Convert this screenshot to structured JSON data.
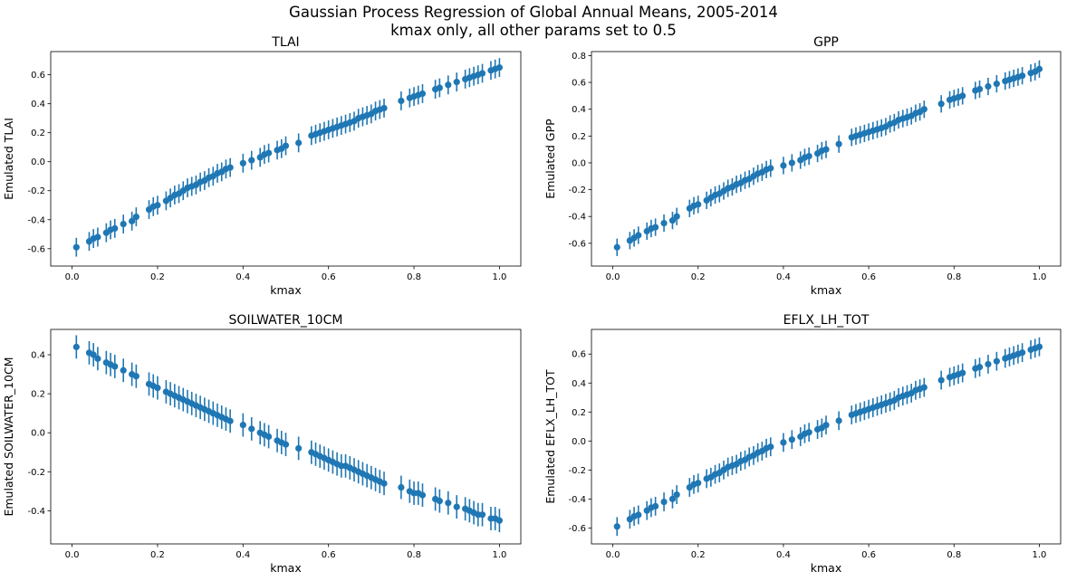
{
  "figure": {
    "title_line1": "Gaussian Process Regression of Global Annual Means, 2005-2014",
    "title_line2": "kmax only, all other params set to 0.5",
    "marker_color": "#1f77b4"
  },
  "chart_data": [
    {
      "type": "scatter",
      "title": "TLAI",
      "xlabel": "kmax",
      "ylabel": "Emulated TLAI",
      "xlim": [
        -0.05,
        1.05
      ],
      "ylim": [
        -0.72,
        0.76
      ],
      "xticks": [
        "0.0",
        "0.2",
        "0.4",
        "0.6",
        "0.8",
        "1.0"
      ],
      "yticks": [
        "-0.6",
        "-0.4",
        "-0.2",
        "0.0",
        "0.2",
        "0.4",
        "0.6"
      ],
      "error_bars": true,
      "x": [
        0.01,
        0.04,
        0.05,
        0.06,
        0.08,
        0.09,
        0.1,
        0.12,
        0.14,
        0.15,
        0.18,
        0.19,
        0.2,
        0.22,
        0.23,
        0.24,
        0.25,
        0.26,
        0.27,
        0.28,
        0.29,
        0.3,
        0.31,
        0.32,
        0.33,
        0.34,
        0.35,
        0.36,
        0.37,
        0.4,
        0.42,
        0.44,
        0.45,
        0.46,
        0.48,
        0.49,
        0.5,
        0.53,
        0.56,
        0.57,
        0.58,
        0.59,
        0.6,
        0.61,
        0.62,
        0.63,
        0.64,
        0.65,
        0.66,
        0.67,
        0.68,
        0.69,
        0.7,
        0.71,
        0.72,
        0.73,
        0.77,
        0.79,
        0.8,
        0.81,
        0.82,
        0.85,
        0.86,
        0.88,
        0.9,
        0.92,
        0.93,
        0.94,
        0.95,
        0.96,
        0.98,
        0.99,
        1.0
      ],
      "y": [
        -0.59,
        -0.55,
        -0.53,
        -0.52,
        -0.49,
        -0.47,
        -0.46,
        -0.43,
        -0.41,
        -0.38,
        -0.33,
        -0.31,
        -0.3,
        -0.27,
        -0.25,
        -0.23,
        -0.22,
        -0.2,
        -0.18,
        -0.17,
        -0.16,
        -0.14,
        -0.13,
        -0.11,
        -0.1,
        -0.08,
        -0.07,
        -0.05,
        -0.04,
        -0.01,
        0.01,
        0.03,
        0.05,
        0.06,
        0.08,
        0.09,
        0.11,
        0.13,
        0.18,
        0.19,
        0.2,
        0.21,
        0.22,
        0.23,
        0.24,
        0.25,
        0.26,
        0.27,
        0.28,
        0.3,
        0.31,
        0.32,
        0.33,
        0.35,
        0.36,
        0.37,
        0.42,
        0.44,
        0.45,
        0.46,
        0.47,
        0.5,
        0.51,
        0.53,
        0.55,
        0.57,
        0.58,
        0.59,
        0.6,
        0.61,
        0.63,
        0.64,
        0.65
      ],
      "error": 0.065
    },
    {
      "type": "scatter",
      "title": "GPP",
      "xlabel": "kmax",
      "ylabel": "Emulated GPP",
      "xlim": [
        -0.05,
        1.05
      ],
      "ylim": [
        -0.77,
        0.83
      ],
      "xticks": [
        "0.0",
        "0.2",
        "0.4",
        "0.6",
        "0.8",
        "1.0"
      ],
      "yticks": [
        "-0.6",
        "-0.4",
        "-0.2",
        "0.0",
        "0.2",
        "0.4",
        "0.6",
        "0.8"
      ],
      "error_bars": true,
      "x": [
        0.01,
        0.04,
        0.05,
        0.06,
        0.08,
        0.09,
        0.1,
        0.12,
        0.14,
        0.15,
        0.18,
        0.19,
        0.2,
        0.22,
        0.23,
        0.24,
        0.25,
        0.26,
        0.27,
        0.28,
        0.29,
        0.3,
        0.31,
        0.32,
        0.33,
        0.34,
        0.35,
        0.36,
        0.37,
        0.4,
        0.42,
        0.44,
        0.45,
        0.46,
        0.48,
        0.49,
        0.5,
        0.53,
        0.56,
        0.57,
        0.58,
        0.59,
        0.6,
        0.61,
        0.62,
        0.63,
        0.64,
        0.65,
        0.66,
        0.67,
        0.68,
        0.69,
        0.7,
        0.71,
        0.72,
        0.73,
        0.77,
        0.79,
        0.8,
        0.81,
        0.82,
        0.85,
        0.86,
        0.88,
        0.9,
        0.92,
        0.93,
        0.94,
        0.95,
        0.96,
        0.98,
        0.99,
        1.0
      ],
      "y": [
        -0.63,
        -0.58,
        -0.56,
        -0.54,
        -0.51,
        -0.49,
        -0.48,
        -0.45,
        -0.43,
        -0.4,
        -0.34,
        -0.32,
        -0.31,
        -0.28,
        -0.26,
        -0.24,
        -0.23,
        -0.21,
        -0.19,
        -0.18,
        -0.16,
        -0.15,
        -0.13,
        -0.12,
        -0.1,
        -0.08,
        -0.07,
        -0.05,
        -0.04,
        -0.02,
        0.0,
        0.02,
        0.04,
        0.05,
        0.07,
        0.09,
        0.1,
        0.14,
        0.19,
        0.2,
        0.21,
        0.22,
        0.23,
        0.24,
        0.25,
        0.26,
        0.27,
        0.29,
        0.3,
        0.32,
        0.33,
        0.34,
        0.35,
        0.37,
        0.38,
        0.4,
        0.44,
        0.47,
        0.48,
        0.49,
        0.5,
        0.54,
        0.55,
        0.57,
        0.59,
        0.61,
        0.62,
        0.63,
        0.64,
        0.65,
        0.67,
        0.68,
        0.7
      ],
      "error": 0.065
    },
    {
      "type": "scatter",
      "title": "SOILWATER_10CM",
      "xlabel": "kmax",
      "ylabel": "Emulated SOILWATER_10CM",
      "xlim": [
        -0.05,
        1.05
      ],
      "ylim": [
        -0.57,
        0.53
      ],
      "xticks": [
        "0.0",
        "0.2",
        "0.4",
        "0.6",
        "0.8",
        "1.0"
      ],
      "yticks": [
        "-0.4",
        "-0.2",
        "0.0",
        "0.2",
        "0.4"
      ],
      "error_bars": true,
      "x": [
        0.01,
        0.04,
        0.05,
        0.06,
        0.08,
        0.09,
        0.1,
        0.12,
        0.14,
        0.15,
        0.18,
        0.19,
        0.2,
        0.22,
        0.23,
        0.24,
        0.25,
        0.26,
        0.27,
        0.28,
        0.29,
        0.3,
        0.31,
        0.32,
        0.33,
        0.34,
        0.35,
        0.36,
        0.37,
        0.4,
        0.42,
        0.44,
        0.45,
        0.46,
        0.48,
        0.49,
        0.5,
        0.53,
        0.56,
        0.57,
        0.58,
        0.59,
        0.6,
        0.61,
        0.62,
        0.63,
        0.64,
        0.65,
        0.66,
        0.67,
        0.68,
        0.69,
        0.7,
        0.71,
        0.72,
        0.73,
        0.77,
        0.79,
        0.8,
        0.81,
        0.82,
        0.85,
        0.86,
        0.88,
        0.9,
        0.92,
        0.93,
        0.94,
        0.95,
        0.96,
        0.98,
        0.99,
        1.0
      ],
      "y": [
        0.44,
        0.41,
        0.4,
        0.38,
        0.36,
        0.35,
        0.34,
        0.32,
        0.3,
        0.29,
        0.25,
        0.24,
        0.23,
        0.21,
        0.2,
        0.19,
        0.18,
        0.17,
        0.16,
        0.15,
        0.14,
        0.13,
        0.12,
        0.11,
        0.1,
        0.09,
        0.08,
        0.07,
        0.06,
        0.04,
        0.02,
        0.0,
        -0.01,
        -0.02,
        -0.04,
        -0.05,
        -0.06,
        -0.08,
        -0.1,
        -0.11,
        -0.12,
        -0.13,
        -0.14,
        -0.15,
        -0.16,
        -0.17,
        -0.17,
        -0.18,
        -0.19,
        -0.2,
        -0.21,
        -0.22,
        -0.23,
        -0.24,
        -0.25,
        -0.26,
        -0.28,
        -0.3,
        -0.31,
        -0.31,
        -0.32,
        -0.34,
        -0.35,
        -0.36,
        -0.38,
        -0.39,
        -0.4,
        -0.41,
        -0.42,
        -0.42,
        -0.44,
        -0.44,
        -0.45
      ],
      "error": 0.06
    },
    {
      "type": "scatter",
      "title": "EFLX_LH_TOT",
      "xlabel": "kmax",
      "ylabel": "Emulated EFLX_LH_TOT",
      "xlim": [
        -0.05,
        1.05
      ],
      "ylim": [
        -0.71,
        0.77
      ],
      "xticks": [
        "0.0",
        "0.2",
        "0.4",
        "0.6",
        "0.8",
        "1.0"
      ],
      "yticks": [
        "-0.6",
        "-0.4",
        "-0.2",
        "0.0",
        "0.2",
        "0.4",
        "0.6"
      ],
      "error_bars": true,
      "x": [
        0.01,
        0.04,
        0.05,
        0.06,
        0.08,
        0.09,
        0.1,
        0.12,
        0.14,
        0.15,
        0.18,
        0.19,
        0.2,
        0.22,
        0.23,
        0.24,
        0.25,
        0.26,
        0.27,
        0.28,
        0.29,
        0.3,
        0.31,
        0.32,
        0.33,
        0.34,
        0.35,
        0.36,
        0.37,
        0.4,
        0.42,
        0.44,
        0.45,
        0.46,
        0.48,
        0.49,
        0.5,
        0.53,
        0.56,
        0.57,
        0.58,
        0.59,
        0.6,
        0.61,
        0.62,
        0.63,
        0.64,
        0.65,
        0.66,
        0.67,
        0.68,
        0.69,
        0.7,
        0.71,
        0.72,
        0.73,
        0.77,
        0.79,
        0.8,
        0.81,
        0.82,
        0.85,
        0.86,
        0.88,
        0.9,
        0.92,
        0.93,
        0.94,
        0.95,
        0.96,
        0.98,
        0.99,
        1.0
      ],
      "y": [
        -0.59,
        -0.54,
        -0.52,
        -0.51,
        -0.48,
        -0.46,
        -0.45,
        -0.42,
        -0.4,
        -0.37,
        -0.32,
        -0.3,
        -0.29,
        -0.26,
        -0.25,
        -0.23,
        -0.22,
        -0.2,
        -0.18,
        -0.17,
        -0.16,
        -0.14,
        -0.13,
        -0.11,
        -0.1,
        -0.08,
        -0.07,
        -0.05,
        -0.04,
        -0.01,
        0.01,
        0.03,
        0.05,
        0.06,
        0.08,
        0.09,
        0.11,
        0.14,
        0.18,
        0.19,
        0.2,
        0.21,
        0.22,
        0.23,
        0.24,
        0.25,
        0.26,
        0.27,
        0.28,
        0.3,
        0.31,
        0.32,
        0.33,
        0.35,
        0.36,
        0.37,
        0.42,
        0.44,
        0.45,
        0.46,
        0.47,
        0.5,
        0.51,
        0.53,
        0.55,
        0.57,
        0.58,
        0.59,
        0.6,
        0.61,
        0.63,
        0.64,
        0.65
      ],
      "error": 0.065
    }
  ]
}
